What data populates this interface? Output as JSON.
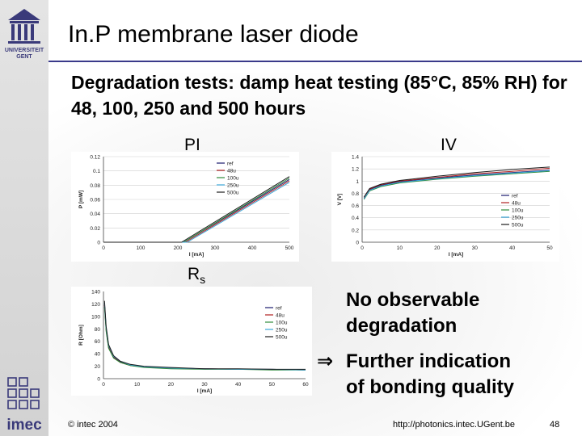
{
  "slide": {
    "title": "In.P membrane laser diode",
    "subtitle": "Degradation tests: damp heat testing (85°C, 85% RH) for 48, 100, 250 and 500 hours",
    "labels": {
      "pi": "PI",
      "iv": "IV",
      "rs_main": "R",
      "rs_sub": "s"
    },
    "notes": {
      "line1a": "No observable",
      "line1b": "degradation",
      "arrow": "⇒",
      "line2a": "Further indication",
      "line2b": "of bonding quality"
    },
    "footer": {
      "copyright": "© intec 2004",
      "url": "http://photonics.intec.UGent.be",
      "page": "48"
    },
    "logos": {
      "top": "UNIVERSITEIT GENT",
      "bottom": "imec"
    }
  },
  "colors": {
    "accent": "#3a3a8a",
    "ref": "#1a1a6e",
    "48u": "#b02020",
    "100u": "#2e8b3a",
    "250u": "#3aa6d8",
    "500u": "#1c1c1c"
  },
  "chart_data": [
    {
      "type": "line",
      "xlabel": "I [mA]",
      "ylabel": "P [mW]",
      "xlim": [
        0,
        500
      ],
      "ylim": [
        0,
        0.12
      ],
      "xticks": [
        "0",
        "100",
        "200",
        "300",
        "400",
        "500"
      ],
      "yticks": [
        "0",
        "0.02",
        "0.04",
        "0.06",
        "0.08",
        "0.1",
        "0.12"
      ],
      "grid": true,
      "legend": "top-right",
      "series": [
        {
          "name": "ref",
          "x": [
            0,
            215,
            500
          ],
          "y": [
            0,
            0,
            0.088
          ]
        },
        {
          "name": "48u",
          "x": [
            0,
            220,
            500
          ],
          "y": [
            0,
            0,
            0.086
          ]
        },
        {
          "name": "100u",
          "x": [
            0,
            215,
            500
          ],
          "y": [
            0,
            0,
            0.09
          ]
        },
        {
          "name": "250u",
          "x": [
            0,
            225,
            500
          ],
          "y": [
            0,
            0,
            0.084
          ]
        },
        {
          "name": "500u",
          "x": [
            0,
            210,
            500
          ],
          "y": [
            0,
            0,
            0.092
          ]
        }
      ]
    },
    {
      "type": "line",
      "xlabel": "I [mA]",
      "ylabel": "V [V]",
      "xlim": [
        0,
        50
      ],
      "ylim": [
        0,
        1.4
      ],
      "xticks": [
        "0",
        "10",
        "20",
        "30",
        "40",
        "50"
      ],
      "yticks": [
        "0",
        "0.2",
        "0.4",
        "0.6",
        "0.8",
        "1",
        "1.2",
        "1.4"
      ],
      "grid": true,
      "legend": "bottom-right",
      "series": [
        {
          "name": "ref",
          "x": [
            0.5,
            2,
            5,
            10,
            20,
            30,
            40,
            50
          ],
          "y": [
            0.72,
            0.86,
            0.93,
            0.99,
            1.05,
            1.1,
            1.14,
            1.18
          ]
        },
        {
          "name": "48u",
          "x": [
            0.5,
            2,
            5,
            10,
            20,
            30,
            40,
            50
          ],
          "y": [
            0.73,
            0.87,
            0.94,
            1.0,
            1.06,
            1.12,
            1.16,
            1.21
          ]
        },
        {
          "name": "100u",
          "x": [
            0.5,
            2,
            5,
            10,
            20,
            30,
            40,
            50
          ],
          "y": [
            0.7,
            0.84,
            0.91,
            0.97,
            1.03,
            1.08,
            1.12,
            1.16
          ]
        },
        {
          "name": "250u",
          "x": [
            0.5,
            2,
            5,
            10,
            20,
            30,
            40,
            50
          ],
          "y": [
            0.71,
            0.85,
            0.92,
            0.98,
            1.04,
            1.09,
            1.13,
            1.17
          ]
        },
        {
          "name": "500u",
          "x": [
            0.5,
            2,
            5,
            10,
            20,
            30,
            40,
            50
          ],
          "y": [
            0.74,
            0.88,
            0.95,
            1.01,
            1.08,
            1.14,
            1.19,
            1.23
          ]
        }
      ]
    },
    {
      "type": "line",
      "xlabel": "I [mA]",
      "ylabel": "R [Ohm]",
      "xlim": [
        0,
        60
      ],
      "ylim": [
        0,
        140
      ],
      "xticks": [
        "0",
        "10",
        "20",
        "30",
        "40",
        "50",
        "60"
      ],
      "yticks": [
        "0",
        "20",
        "40",
        "60",
        "80",
        "100",
        "120",
        "140"
      ],
      "grid": false,
      "legend": "top-right",
      "series": [
        {
          "name": "ref",
          "x": [
            0.3,
            0.8,
            1.5,
            3,
            5,
            8,
            12,
            20,
            30,
            40,
            50,
            60
          ],
          "y": [
            120,
            80,
            52,
            35,
            27,
            22,
            19,
            17,
            16,
            15,
            15,
            14
          ]
        },
        {
          "name": "48u",
          "x": [
            0.3,
            0.8,
            1.5,
            3,
            5,
            8,
            12,
            20,
            30,
            40,
            50,
            60
          ],
          "y": [
            118,
            78,
            50,
            34,
            26,
            21,
            19,
            17,
            16,
            15,
            15,
            14
          ]
        },
        {
          "name": "100u",
          "x": [
            0.3,
            0.8,
            1.5,
            3,
            5,
            8,
            12,
            20,
            30,
            40,
            50,
            60
          ],
          "y": [
            115,
            76,
            49,
            33,
            26,
            21,
            18,
            16,
            15,
            15,
            14,
            14
          ]
        },
        {
          "name": "250u",
          "x": [
            0.3,
            0.8,
            1.5,
            3,
            5,
            8,
            12,
            20,
            30,
            40,
            50,
            60
          ],
          "y": [
            122,
            82,
            54,
            36,
            28,
            22,
            19,
            17,
            16,
            15,
            15,
            14
          ]
        },
        {
          "name": "500u",
          "x": [
            0.3,
            0.8,
            1.5,
            3,
            5,
            8,
            12,
            20,
            30,
            40,
            50,
            60
          ],
          "y": [
            125,
            84,
            55,
            37,
            28,
            23,
            20,
            18,
            16,
            16,
            15,
            15
          ]
        }
      ]
    }
  ]
}
